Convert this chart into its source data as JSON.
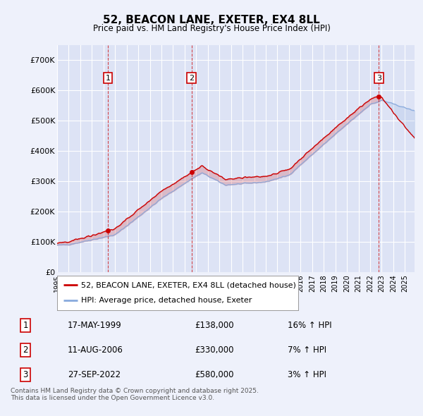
{
  "title_line1": "52, BEACON LANE, EXETER, EX4 8LL",
  "title_line2": "Price paid vs. HM Land Registry's House Price Index (HPI)",
  "ylim": [
    0,
    750000
  ],
  "yticks": [
    0,
    100000,
    200000,
    300000,
    400000,
    500000,
    600000,
    700000
  ],
  "ytick_labels": [
    "£0",
    "£100K",
    "£200K",
    "£300K",
    "£400K",
    "£500K",
    "£600K",
    "£700K"
  ],
  "xlim_start": 1995.0,
  "xlim_end": 2025.83,
  "x_year_start": 1995,
  "x_year_end": 2025,
  "background_color": "#eef1fb",
  "plot_bg_color": "#dde3f5",
  "grid_color": "#ffffff",
  "line_color_property": "#cc0000",
  "line_color_hpi": "#88aadd",
  "sale_marker_color": "#cc0000",
  "vline_color": "#cc0000",
  "legend_property_label": "52, BEACON LANE, EXETER, EX4 8LL (detached house)",
  "legend_hpi_label": "HPI: Average price, detached house, Exeter",
  "sale1_year": 1999.37,
  "sale1_label": "1",
  "sale1_date": "17-MAY-1999",
  "sale1_price": "£138,000",
  "sale1_hpi": "16% ↑ HPI",
  "sale1_price_val": 138000,
  "sale2_year": 2006.6,
  "sale2_label": "2",
  "sale2_date": "11-AUG-2006",
  "sale2_price": "£330,000",
  "sale2_hpi": "7% ↑ HPI",
  "sale2_price_val": 330000,
  "sale3_year": 2022.75,
  "sale3_label": "3",
  "sale3_date": "27-SEP-2022",
  "sale3_price": "£580,000",
  "sale3_hpi": "3% ↑ HPI",
  "sale3_price_val": 580000,
  "footer_text": "Contains HM Land Registry data © Crown copyright and database right 2025.\nThis data is licensed under the Open Government Licence v3.0."
}
